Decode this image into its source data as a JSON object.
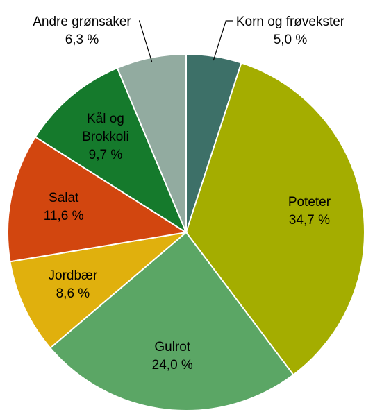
{
  "chart_data": {
    "type": "pie",
    "categories": [
      "Korn og frøvekster",
      "Poteter",
      "Gulrot",
      "Jordbær",
      "Salat",
      "Kål og Brokkoli",
      "Andre grønsaker"
    ],
    "values": [
      5.0,
      34.7,
      24.0,
      8.6,
      11.6,
      9.7,
      6.3
    ],
    "value_labels": [
      "5,0 %",
      "34,7 %",
      "24,0 %",
      "8,6 %",
      "11,6 %",
      "9,7 %",
      "6,3 %"
    ],
    "colors": [
      "#3d7068",
      "#a4ad00",
      "#5ba665",
      "#e0b00d",
      "#d2460f",
      "#157a2c",
      "#92aba0"
    ]
  }
}
